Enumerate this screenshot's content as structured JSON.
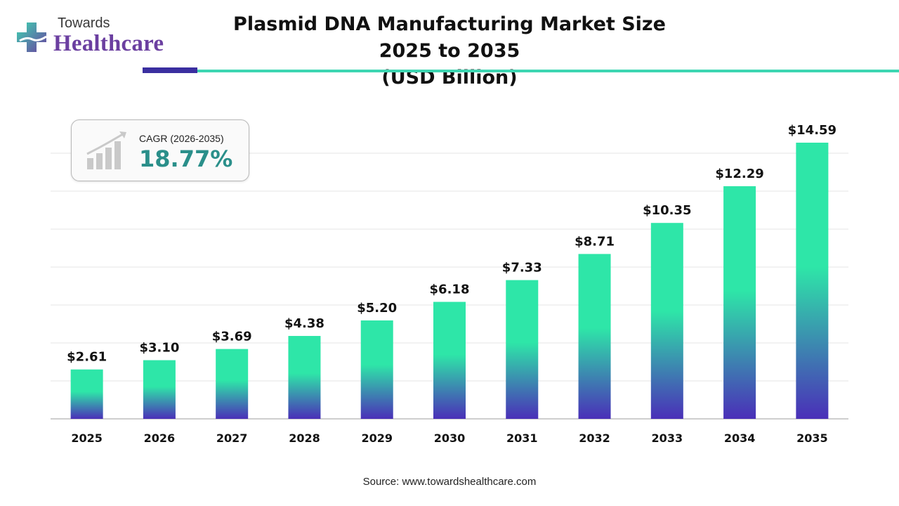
{
  "logo": {
    "line1": "Towards",
    "line2": "Healthcare"
  },
  "colors": {
    "brand_purple": "#6b3fa0",
    "accent_teal": "#3dd6b2",
    "accent_indigo": "#3b2fa0",
    "bar_top": "#2ee6a8",
    "bar_bottom": "#4a2fb8",
    "cagr_value": "#2a8f8a"
  },
  "cagr": {
    "label": "CAGR (2026-2035)",
    "value": "18.77%",
    "icon": "growth-chart-icon"
  },
  "source": "Source: www.towardshealthcare.com",
  "chart_data": {
    "type": "bar",
    "title": "Plasmid DNA Manufacturing Market Size 2025 to 2035 (USD Billion)",
    "title_line1": "Plasmid DNA Manufacturing Market Size 2025 to 2035",
    "title_line2": "(USD Billion)",
    "categories": [
      "2025",
      "2026",
      "2027",
      "2028",
      "2029",
      "2030",
      "2031",
      "2032",
      "2033",
      "2034",
      "2035"
    ],
    "values": [
      2.61,
      3.1,
      3.69,
      4.38,
      5.2,
      6.18,
      7.33,
      8.71,
      10.35,
      12.29,
      14.59
    ],
    "data_labels": [
      "$2.61",
      "$3.10",
      "$3.69",
      "$4.38",
      "$5.20",
      "$6.18",
      "$7.33",
      "$8.71",
      "$10.35",
      "$12.29",
      "$14.59"
    ],
    "ylim": [
      0,
      14.59
    ],
    "xlabel": "",
    "ylabel": "",
    "grid": true,
    "legend": "none"
  }
}
